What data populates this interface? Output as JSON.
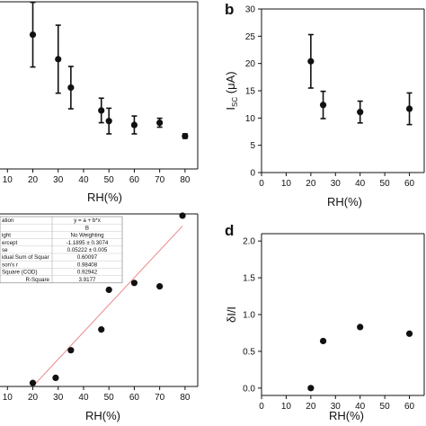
{
  "chart_data": [
    {
      "id": "a",
      "type": "scatter",
      "panel_label": "",
      "xlabel": "RH(%)",
      "ylabel": "",
      "x_ticks": [
        10,
        20,
        30,
        40,
        50,
        60,
        70,
        80
      ],
      "xlim": [
        6,
        85
      ],
      "ylim": [
        0,
        30
      ],
      "grid": false,
      "series": [
        {
          "x": [
            20,
            30,
            35,
            47,
            50,
            60,
            70,
            80
          ],
          "y": [
            24.1,
            19.7,
            14.6,
            10.5,
            8.6,
            7.9,
            8.3,
            5.9
          ],
          "err": [
            5.8,
            6.1,
            3.8,
            2.2,
            2.3,
            1.6,
            0.8,
            0.4
          ]
        }
      ]
    },
    {
      "id": "b",
      "type": "scatter",
      "panel_label": "b",
      "xlabel": "RH(%)",
      "ylabel": "I_sc (μA)",
      "ylabel_main": "I",
      "ylabel_sub": "SC",
      "ylabel_unit": " (μA)",
      "x_ticks": [
        0,
        10,
        20,
        30,
        40,
        50,
        60
      ],
      "y_ticks": [
        0,
        5,
        10,
        15,
        20,
        25,
        30
      ],
      "xlim": [
        0,
        66
      ],
      "ylim": [
        0,
        30
      ],
      "grid": false,
      "series": [
        {
          "x": [
            20,
            25,
            40,
            60
          ],
          "y": [
            20.4,
            12.4,
            11.1,
            11.7
          ],
          "err": [
            4.9,
            2.5,
            2.0,
            2.9
          ]
        }
      ]
    },
    {
      "id": "c",
      "type": "scatter",
      "panel_label": "",
      "xlabel": "RH(%)",
      "ylabel": "",
      "x_ticks": [
        10,
        20,
        30,
        40,
        50,
        60,
        70,
        80
      ],
      "xlim": [
        6,
        85
      ],
      "ylim": [
        0,
        1
      ],
      "grid": false,
      "series": [
        {
          "x": [
            20,
            29,
            35,
            47,
            50,
            60,
            70,
            79
          ],
          "y": [
            0.02,
            0.05,
            0.21,
            0.33,
            0.56,
            0.6,
            0.58,
            0.99
          ]
        }
      ],
      "fit_line": {
        "x": [
          20,
          79
        ],
        "y": [
          0.0,
          0.93
        ],
        "color": "#e88a8a"
      },
      "fit_table": {
        "rows": [
          [
            "ation",
            "y = a + b*x"
          ],
          [
            "",
            "B"
          ],
          [
            "ight",
            "No Weighting"
          ],
          [
            "ercept",
            "-1.1895 ± 0.3074"
          ],
          [
            "se",
            "0.05222 ± 0.005"
          ],
          [
            "idual Sum of Squar",
            "0.60097"
          ],
          [
            "son's r",
            "0.98408"
          ],
          [
            "Square (COD)",
            "0.92942"
          ],
          [
            "R-Square",
            "3.9177"
          ]
        ]
      }
    },
    {
      "id": "d",
      "type": "scatter",
      "panel_label": "d",
      "xlabel": "RH(%)",
      "ylabel": "δI/I",
      "x_ticks": [
        0,
        10,
        20,
        30,
        40,
        50,
        60
      ],
      "y_ticks": [
        "0.0",
        "0.5",
        "1.0",
        "1.5",
        "2.0"
      ],
      "xlim": [
        0,
        66
      ],
      "ylim": [
        -0.1,
        2.1
      ],
      "grid": false,
      "series": [
        {
          "x": [
            20,
            25,
            40,
            60
          ],
          "y": [
            0.0,
            0.64,
            0.83,
            0.74
          ]
        }
      ]
    }
  ]
}
